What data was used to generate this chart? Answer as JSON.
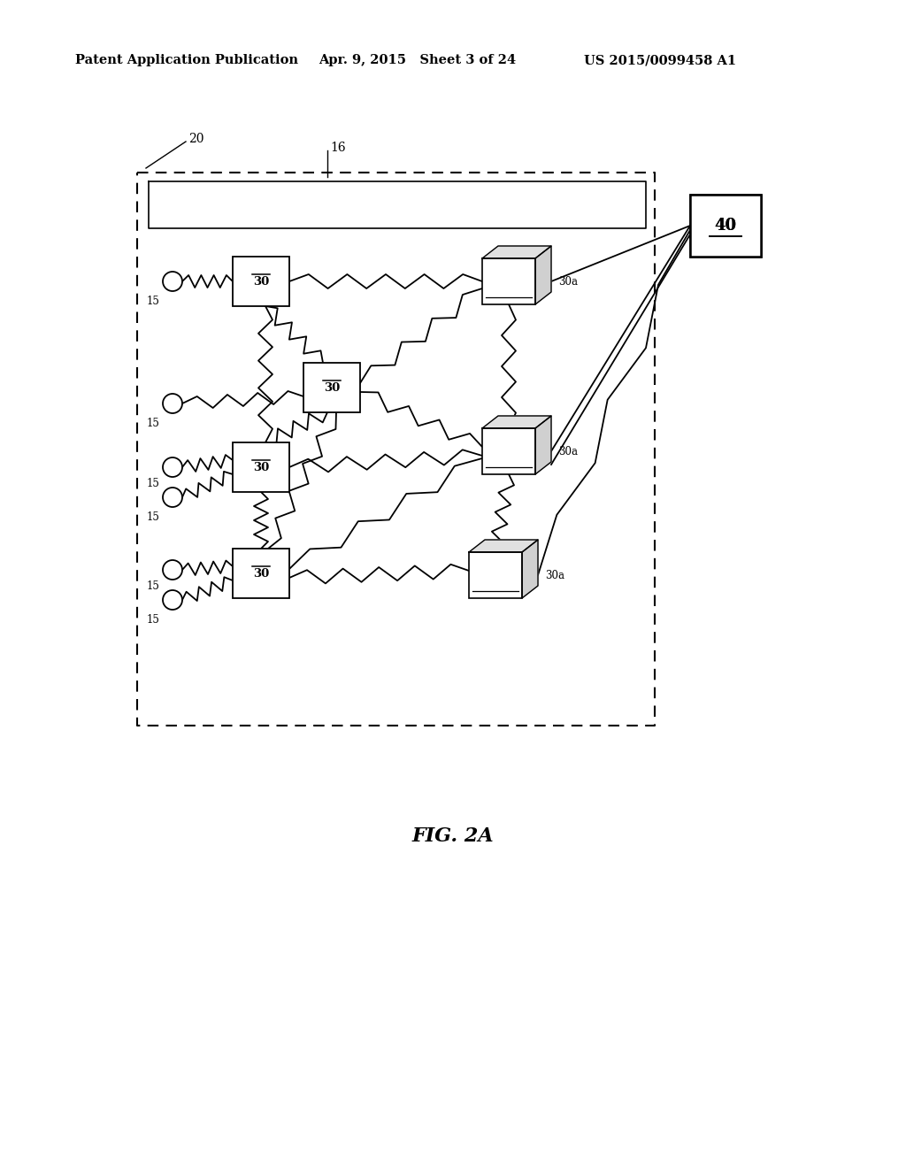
{
  "bg_color": "#ffffff",
  "header_left": "Patent Application Publication",
  "header_mid": "Apr. 9, 2015   Sheet 3 of 24",
  "header_right": "US 2015/0099458 A1",
  "fig_label": "FIG. 2A",
  "label_20": "20",
  "label_16": "16",
  "label_40": "40",
  "label_30": "30",
  "label_30a": "30a",
  "label_15": "15"
}
